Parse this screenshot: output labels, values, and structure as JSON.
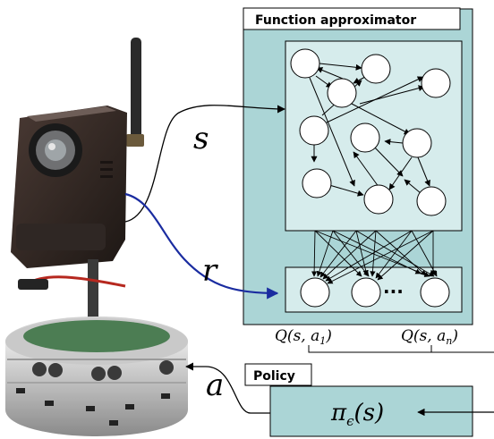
{
  "colors": {
    "panel_fill": "#abd5d6",
    "inner_fill": "#d6ecec",
    "node_fill": "#ffffff",
    "stroke": "#000000",
    "r_arrow": "#1a2ca0"
  },
  "function_approximator": {
    "title": "Function approximator",
    "output_ellipsis": "···",
    "q_first": "Q(s, a",
    "q_first_sub": "1",
    "q_last": "Q(s, a",
    "q_last_sub": "n",
    "q_close": ")"
  },
  "policy": {
    "title": "Policy",
    "expression_main": "π",
    "expression_sub": "ϵ",
    "expression_arg": "(s)"
  },
  "signals": {
    "state": "s",
    "reward": "r",
    "action": "a"
  },
  "robot": {
    "description_icons": [
      "camera-icon",
      "antenna-icon",
      "mobile-robot-base-icon"
    ]
  }
}
